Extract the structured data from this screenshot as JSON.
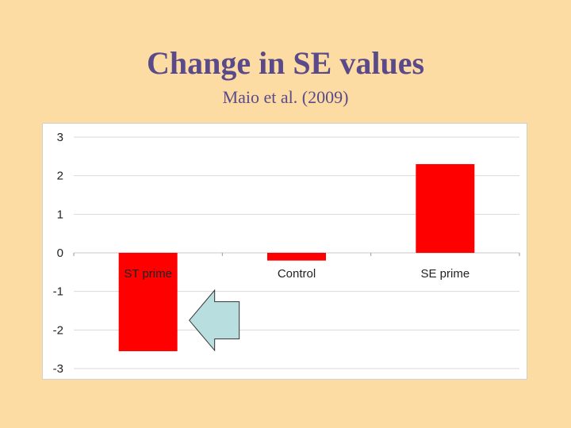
{
  "slide": {
    "title": "Change in SE values",
    "subtitle": "Maio et al. (2009)"
  },
  "colors": {
    "background": "#FCDCA2",
    "title": "#5A4A8A",
    "bar": "#FF0000",
    "gridline": "#D9D9D9",
    "arrow_fill": "#B8DEE0",
    "arrow_stroke": "#333333"
  },
  "chart_data": {
    "type": "bar",
    "title": "",
    "xlabel": "",
    "ylabel": "",
    "categories": [
      "ST prime",
      "Control",
      "SE prime"
    ],
    "values": [
      -2.55,
      -0.2,
      2.3
    ],
    "ylim": [
      -3,
      3
    ],
    "yticks": [
      3,
      2,
      1,
      0,
      -1,
      -2,
      -3
    ],
    "grid": true,
    "legend": "none",
    "annotation": {
      "shape": "left-arrow",
      "points_to": "ST prime"
    }
  }
}
